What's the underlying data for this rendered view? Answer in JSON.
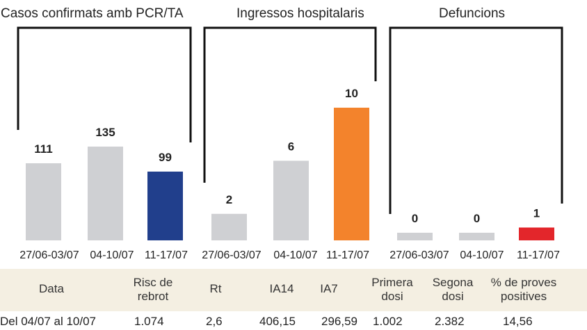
{
  "chart_data": [
    {
      "type": "bar",
      "title": "Casos confirmats amb PCR/TA",
      "categories": [
        "27/06-03/07",
        "04-10/07",
        "11-17/07"
      ],
      "values": [
        111,
        135,
        99
      ],
      "colors": [
        "#cfd0d3",
        "#cfd0d3",
        "#213f8c"
      ]
    },
    {
      "type": "bar",
      "title": "Ingressos hospitalaris",
      "categories": [
        "27/06-03/07",
        "04-10/07",
        "11-17/07"
      ],
      "values": [
        2,
        6,
        10
      ],
      "colors": [
        "#cfd0d3",
        "#cfd0d3",
        "#f3832c"
      ]
    },
    {
      "type": "bar",
      "title": "Defuncions",
      "categories": [
        "27/06-03/07",
        "04-10/07",
        "11-17/07"
      ],
      "values": [
        0,
        0,
        1
      ],
      "colors": [
        "#cfd0d3",
        "#cfd0d3",
        "#e3262b"
      ]
    }
  ],
  "stats_table": {
    "headers": [
      [
        "Data"
      ],
      [
        "Risc de",
        "rebrot"
      ],
      [
        "Rt"
      ],
      [
        "IA14"
      ],
      [
        "IA7"
      ],
      [
        "Primera",
        "dosi"
      ],
      [
        "Segona",
        "dosi"
      ],
      [
        "% de proves",
        "positives"
      ]
    ],
    "row": [
      "Del 04/07 al 10/07",
      "1.074",
      "2,6",
      "406,15",
      "296,59",
      "1.002",
      "2.382",
      "14,56"
    ]
  }
}
